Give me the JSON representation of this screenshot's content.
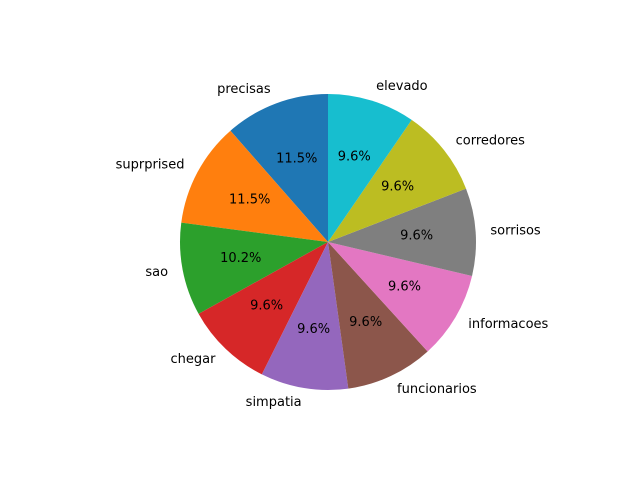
{
  "chart_data": {
    "type": "pie",
    "title": "",
    "start_angle_deg": 90,
    "direction": "counterclockwise",
    "slices": [
      {
        "label": "precisas",
        "value": 11.5,
        "pct_label": "11.5%",
        "color": "#1f77b4"
      },
      {
        "label": "suprprised",
        "value": 11.5,
        "pct_label": "11.5%",
        "color": "#ff7f0e"
      },
      {
        "label": "sao",
        "value": 10.2,
        "pct_label": "10.2%",
        "color": "#2ca02c"
      },
      {
        "label": "chegar",
        "value": 9.6,
        "pct_label": "9.6%",
        "color": "#d62728"
      },
      {
        "label": "simpatia",
        "value": 9.6,
        "pct_label": "9.6%",
        "color": "#9467bd"
      },
      {
        "label": "funcionarios",
        "value": 9.6,
        "pct_label": "9.6%",
        "color": "#8c564b"
      },
      {
        "label": "informacoes",
        "value": 9.6,
        "pct_label": "9.6%",
        "color": "#e377c2"
      },
      {
        "label": "sorrisos",
        "value": 9.6,
        "pct_label": "9.6%",
        "color": "#7f7f7f"
      },
      {
        "label": "corredores",
        "value": 9.6,
        "pct_label": "9.6%",
        "color": "#bcbd22"
      },
      {
        "label": "elevado",
        "value": 9.6,
        "pct_label": "9.6%",
        "color": "#17becf"
      }
    ]
  }
}
